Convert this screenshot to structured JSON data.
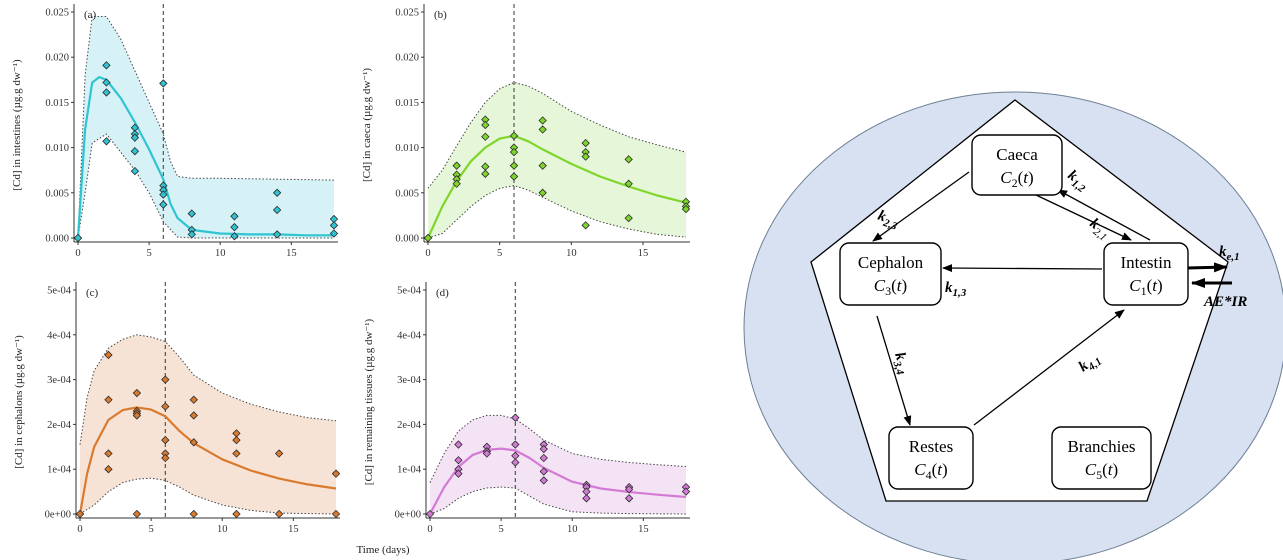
{
  "chart_data": [
    {
      "type": "scatter",
      "panel_label": "(a)",
      "ylabel": "[Cd] in intestines (µg.g dw⁻¹)",
      "xlabel": "",
      "xlim": [
        0,
        18
      ],
      "ylim": [
        0,
        0.025
      ],
      "xticks": [
        0,
        5,
        10,
        15
      ],
      "yticks": [
        0.0,
        0.005,
        0.01,
        0.015,
        0.02,
        0.025
      ],
      "ytick_labels": [
        "0.000",
        "0.005",
        "0.010",
        "0.015",
        "0.020",
        "0.025"
      ],
      "vline_x": 6,
      "color": "#2ec4d2",
      "band_color": "#d7f2f6",
      "points": [
        {
          "x": 0,
          "y": 0.0
        },
        {
          "x": 0,
          "y": 0.0
        },
        {
          "x": 2,
          "y": 0.0191
        },
        {
          "x": 2,
          "y": 0.0172
        },
        {
          "x": 2,
          "y": 0.0161
        },
        {
          "x": 2,
          "y": 0.0107
        },
        {
          "x": 4,
          "y": 0.0122
        },
        {
          "x": 4,
          "y": 0.0115
        },
        {
          "x": 4,
          "y": 0.0111
        },
        {
          "x": 4,
          "y": 0.0096
        },
        {
          "x": 4,
          "y": 0.0074
        },
        {
          "x": 6,
          "y": 0.0171
        },
        {
          "x": 6,
          "y": 0.0058
        },
        {
          "x": 6,
          "y": 0.0053
        },
        {
          "x": 6,
          "y": 0.0048
        },
        {
          "x": 6,
          "y": 0.0037
        },
        {
          "x": 8,
          "y": 0.0027
        },
        {
          "x": 8,
          "y": 0.0009
        },
        {
          "x": 8,
          "y": 0.0004
        },
        {
          "x": 11,
          "y": 0.0024
        },
        {
          "x": 11,
          "y": 0.0012
        },
        {
          "x": 11,
          "y": 0.0002
        },
        {
          "x": 14,
          "y": 0.005
        },
        {
          "x": 14,
          "y": 0.0031
        },
        {
          "x": 14,
          "y": 0.0004
        },
        {
          "x": 18,
          "y": 0.0021
        },
        {
          "x": 18,
          "y": 0.0014
        },
        {
          "x": 18,
          "y": 0.0005
        }
      ],
      "fit": {
        "x": [
          0,
          0.5,
          1,
          1.5,
          2,
          3,
          4,
          5,
          6,
          6.5,
          7,
          8,
          10,
          12,
          14,
          16,
          18
        ],
        "y": [
          0,
          0.012,
          0.0172,
          0.0178,
          0.0175,
          0.0155,
          0.0128,
          0.0098,
          0.0065,
          0.0038,
          0.0022,
          0.0009,
          0.0005,
          0.0004,
          0.0004,
          0.0003,
          0.0003
        ]
      },
      "band_upper": {
        "x": [
          0,
          0.5,
          1,
          2,
          3,
          4,
          5,
          6,
          6.5,
          7,
          8,
          10,
          14,
          18
        ],
        "y": [
          0,
          0.018,
          0.0245,
          0.0245,
          0.022,
          0.0185,
          0.015,
          0.0115,
          0.0085,
          0.0068,
          0.0066,
          0.0066,
          0.0065,
          0.0064
        ]
      },
      "band_lower": {
        "x": [
          0,
          0.5,
          1,
          2,
          3,
          4,
          5,
          6,
          7,
          8,
          18
        ],
        "y": [
          0,
          0.005,
          0.0105,
          0.0115,
          0.0095,
          0.0075,
          0.005,
          0.0018,
          0.0001,
          0,
          0
        ]
      }
    },
    {
      "type": "scatter",
      "panel_label": "(b)",
      "ylabel": "[Cd] in caeca (µg.g dw⁻¹)",
      "xlabel": "",
      "xlim": [
        0,
        18
      ],
      "ylim": [
        0,
        0.025
      ],
      "xticks": [
        0,
        5,
        10,
        15
      ],
      "yticks": [
        0.0,
        0.005,
        0.01,
        0.015,
        0.02,
        0.025
      ],
      "ytick_labels": [
        "0.000",
        "0.005",
        "0.010",
        "0.015",
        "0.020",
        "0.025"
      ],
      "vline_x": 6,
      "color": "#7fd62a",
      "band_color": "#e6f6d8",
      "points": [
        {
          "x": 0,
          "y": 0.0
        },
        {
          "x": 0,
          "y": 0.0
        },
        {
          "x": 2,
          "y": 0.008
        },
        {
          "x": 2,
          "y": 0.007
        },
        {
          "x": 2,
          "y": 0.0065
        },
        {
          "x": 2,
          "y": 0.006
        },
        {
          "x": 4,
          "y": 0.0131
        },
        {
          "x": 4,
          "y": 0.0125
        },
        {
          "x": 4,
          "y": 0.0112
        },
        {
          "x": 4,
          "y": 0.0079
        },
        {
          "x": 4,
          "y": 0.0071
        },
        {
          "x": 6,
          "y": 0.0113
        },
        {
          "x": 6,
          "y": 0.01
        },
        {
          "x": 6,
          "y": 0.0095
        },
        {
          "x": 6,
          "y": 0.008
        },
        {
          "x": 6,
          "y": 0.0068
        },
        {
          "x": 8,
          "y": 0.013
        },
        {
          "x": 8,
          "y": 0.012
        },
        {
          "x": 8,
          "y": 0.008
        },
        {
          "x": 8,
          "y": 0.005
        },
        {
          "x": 11,
          "y": 0.0105
        },
        {
          "x": 11,
          "y": 0.0095
        },
        {
          "x": 11,
          "y": 0.009
        },
        {
          "x": 11,
          "y": 0.0014
        },
        {
          "x": 14,
          "y": 0.0087
        },
        {
          "x": 14,
          "y": 0.006
        },
        {
          "x": 14,
          "y": 0.0022
        },
        {
          "x": 18,
          "y": 0.004
        },
        {
          "x": 18,
          "y": 0.0035
        },
        {
          "x": 18,
          "y": 0.0032
        }
      ],
      "fit": {
        "x": [
          0,
          1,
          2,
          3,
          4,
          5,
          6,
          7,
          8,
          10,
          12,
          14,
          16,
          18
        ],
        "y": [
          0,
          0.0035,
          0.0063,
          0.0085,
          0.01,
          0.011,
          0.0113,
          0.0107,
          0.0098,
          0.0082,
          0.0068,
          0.0057,
          0.0047,
          0.0039
        ]
      },
      "band_upper": {
        "x": [
          0,
          1,
          2,
          3,
          4,
          5,
          6,
          7,
          8,
          10,
          12,
          14,
          16,
          18
        ],
        "y": [
          0.0055,
          0.0075,
          0.0102,
          0.0128,
          0.015,
          0.0165,
          0.0172,
          0.0168,
          0.016,
          0.014,
          0.0125,
          0.0112,
          0.0103,
          0.0095
        ]
      },
      "band_lower": {
        "x": [
          0,
          1,
          2,
          3,
          4,
          5,
          6,
          7,
          8,
          10,
          12,
          14,
          16,
          18
        ],
        "y": [
          0,
          0.0005,
          0.002,
          0.0035,
          0.0047,
          0.0055,
          0.0058,
          0.0053,
          0.0045,
          0.003,
          0.0018,
          0.001,
          0.0004,
          0.0001
        ]
      }
    },
    {
      "type": "scatter",
      "panel_label": "(c)",
      "ylabel": "[Cd] in cephalons (µg.g dw⁻¹)",
      "xlabel": "",
      "xlim": [
        0,
        18
      ],
      "ylim": [
        0,
        0.0005
      ],
      "xticks": [
        0,
        5,
        10,
        15
      ],
      "yticks": [
        0,
        0.0001,
        0.0002,
        0.0003,
        0.0004,
        0.0005
      ],
      "ytick_labels": [
        "0e+00",
        "1e-04",
        "2e-04",
        "3e-04",
        "4e-04",
        "5e-04"
      ],
      "vline_x": 6,
      "color": "#d97a2e",
      "band_color": "#f7e3d6",
      "points": [
        {
          "x": 0,
          "y": 0.0
        },
        {
          "x": 0,
          "y": 0.0
        },
        {
          "x": 2,
          "y": 0.000355
        },
        {
          "x": 2,
          "y": 0.000255
        },
        {
          "x": 2,
          "y": 0.000135
        },
        {
          "x": 2,
          "y": 0.0001
        },
        {
          "x": 4,
          "y": 0.00027
        },
        {
          "x": 4,
          "y": 0.00023
        },
        {
          "x": 4,
          "y": 0.000225
        },
        {
          "x": 4,
          "y": 0.00022
        },
        {
          "x": 4,
          "y": 0.0
        },
        {
          "x": 6,
          "y": 0.0003
        },
        {
          "x": 6,
          "y": 0.00024
        },
        {
          "x": 6,
          "y": 0.000165
        },
        {
          "x": 6,
          "y": 0.000135
        },
        {
          "x": 6,
          "y": 0.000125
        },
        {
          "x": 8,
          "y": 0.000255
        },
        {
          "x": 8,
          "y": 0.00022
        },
        {
          "x": 8,
          "y": 0.00016
        },
        {
          "x": 8,
          "y": 0.0
        },
        {
          "x": 11,
          "y": 0.00018
        },
        {
          "x": 11,
          "y": 0.000165
        },
        {
          "x": 11,
          "y": 0.000135
        },
        {
          "x": 11,
          "y": 0.0
        },
        {
          "x": 14,
          "y": 0.000135
        },
        {
          "x": 14,
          "y": 0.0
        },
        {
          "x": 18,
          "y": 9e-05
        },
        {
          "x": 18,
          "y": 0.0
        }
      ],
      "fit": {
        "x": [
          0,
          0.5,
          1,
          2,
          3,
          4,
          5,
          6,
          7,
          8,
          10,
          12,
          14,
          16,
          18
        ],
        "y": [
          0,
          9e-05,
          0.00015,
          0.00021,
          0.000232,
          0.000238,
          0.000233,
          0.000218,
          0.000185,
          0.000158,
          0.000122,
          9.7e-05,
          7.9e-05,
          6.6e-05,
          5.7e-05
        ]
      },
      "band_upper": {
        "x": [
          0,
          0.5,
          1,
          2,
          3,
          4,
          5,
          6,
          7,
          8,
          10,
          12,
          14,
          16,
          18
        ],
        "y": [
          0.000155,
          0.00026,
          0.00032,
          0.00037,
          0.00039,
          0.0004,
          0.000395,
          0.000385,
          0.00035,
          0.00031,
          0.00027,
          0.000245,
          0.000228,
          0.000215,
          0.000208
        ]
      },
      "band_lower": {
        "x": [
          0,
          1,
          2,
          3,
          4,
          5,
          6,
          7,
          8,
          10,
          12,
          14,
          18
        ],
        "y": [
          0,
          2e-05,
          5e-05,
          7e-05,
          7.8e-05,
          8e-05,
          7.5e-05,
          6e-05,
          4.2e-05,
          2e-05,
          8e-06,
          2e-06,
          0
        ]
      }
    },
    {
      "type": "scatter",
      "panel_label": "(d)",
      "ylabel": "[Cd] in remaining tissues (µg.g dw⁻¹)",
      "xlabel": "Time (days)",
      "xlim": [
        0,
        18
      ],
      "ylim": [
        0,
        0.0005
      ],
      "xticks": [
        0,
        5,
        10,
        15
      ],
      "yticks": [
        0,
        0.0001,
        0.0002,
        0.0003,
        0.0004,
        0.0005
      ],
      "ytick_labels": [
        "0e+00",
        "1e-04",
        "2e-04",
        "3e-04",
        "4e-04",
        "5e-04"
      ],
      "vline_x": 6,
      "color": "#d47ad6",
      "band_color": "#f4e3f4",
      "points": [
        {
          "x": 0,
          "y": 0.0
        },
        {
          "x": 2,
          "y": 0.000155
        },
        {
          "x": 2,
          "y": 0.00012
        },
        {
          "x": 2,
          "y": 0.0001
        },
        {
          "x": 2,
          "y": 9e-05
        },
        {
          "x": 4,
          "y": 0.00015
        },
        {
          "x": 4,
          "y": 0.00014
        },
        {
          "x": 4,
          "y": 0.000135
        },
        {
          "x": 6,
          "y": 0.000215
        },
        {
          "x": 6,
          "y": 0.000155
        },
        {
          "x": 6,
          "y": 0.00013
        },
        {
          "x": 6,
          "y": 0.000115
        },
        {
          "x": 8,
          "y": 0.000155
        },
        {
          "x": 8,
          "y": 0.000145
        },
        {
          "x": 8,
          "y": 0.000125
        },
        {
          "x": 8,
          "y": 9.5e-05
        },
        {
          "x": 8,
          "y": 7.5e-05
        },
        {
          "x": 11,
          "y": 6.5e-05
        },
        {
          "x": 11,
          "y": 6e-05
        },
        {
          "x": 11,
          "y": 5e-05
        },
        {
          "x": 11,
          "y": 3.5e-05
        },
        {
          "x": 14,
          "y": 6e-05
        },
        {
          "x": 14,
          "y": 5.5e-05
        },
        {
          "x": 14,
          "y": 3.5e-05
        },
        {
          "x": 18,
          "y": 6e-05
        },
        {
          "x": 18,
          "y": 5e-05
        }
      ],
      "fit": {
        "x": [
          0,
          1,
          2,
          3,
          4,
          5,
          6,
          7,
          8,
          10,
          12,
          14,
          16,
          18
        ],
        "y": [
          0,
          6e-05,
          0.000105,
          0.000132,
          0.000143,
          0.000146,
          0.000142,
          0.000125,
          0.000103,
          7.2e-05,
          5.7e-05,
          4.9e-05,
          4.3e-05,
          3.8e-05
        ]
      },
      "band_upper": {
        "x": [
          0,
          1,
          2,
          3,
          4,
          5,
          6,
          7,
          8,
          10,
          12,
          14,
          16,
          18
        ],
        "y": [
          7e-05,
          0.000135,
          0.000185,
          0.00021,
          0.00022,
          0.00022,
          0.000212,
          0.00019,
          0.000165,
          0.000135,
          0.000122,
          0.000115,
          0.00011,
          0.000106
        ]
      },
      "band_lower": {
        "x": [
          0,
          1,
          2,
          3,
          4,
          5,
          6,
          7,
          8,
          10,
          12,
          14,
          18
        ],
        "y": [
          0,
          1.2e-05,
          3.5e-05,
          5e-05,
          5.8e-05,
          6e-05,
          5.8e-05,
          4e-05,
          2.2e-05,
          5e-06,
          2e-06,
          1e-06,
          0
        ]
      }
    }
  ],
  "diagram": {
    "background_color": "#d7e1f2",
    "compartments": [
      {
        "id": "caeca",
        "name": "Caeca",
        "var": "C",
        "sub": "2",
        "arg": "(t)"
      },
      {
        "id": "cephalon",
        "name": "Cephalon",
        "var": "C",
        "sub": "3",
        "arg": "(t)"
      },
      {
        "id": "intestin",
        "name": "Intestin",
        "var": "C",
        "sub": "1",
        "arg": "(t)"
      },
      {
        "id": "restes",
        "name": "Restes",
        "var": "C",
        "sub": "4",
        "arg": "(t)"
      },
      {
        "id": "branchies",
        "name": "Branchies",
        "var": "C",
        "sub": "5",
        "arg": "(t)"
      }
    ],
    "rates": [
      {
        "id": "k12",
        "base": "k",
        "sub": "1,2",
        "sub_bold": true
      },
      {
        "id": "k21",
        "base": "k",
        "sub": "2,1",
        "sub_bold": false
      },
      {
        "id": "k23",
        "base": "k",
        "sub": "2,3",
        "sub_bold": true
      },
      {
        "id": "k13",
        "base": "k",
        "sub": "1,3",
        "sub_bold": true
      },
      {
        "id": "k34",
        "base": "k",
        "sub": "3,4",
        "sub_bold": true
      },
      {
        "id": "k41",
        "base": "k",
        "sub": "4,1",
        "sub_bold": true
      },
      {
        "id": "ke1",
        "base": "k",
        "sub": "e,1",
        "sub_bold": true
      }
    ],
    "input_label": "AE*IR"
  }
}
